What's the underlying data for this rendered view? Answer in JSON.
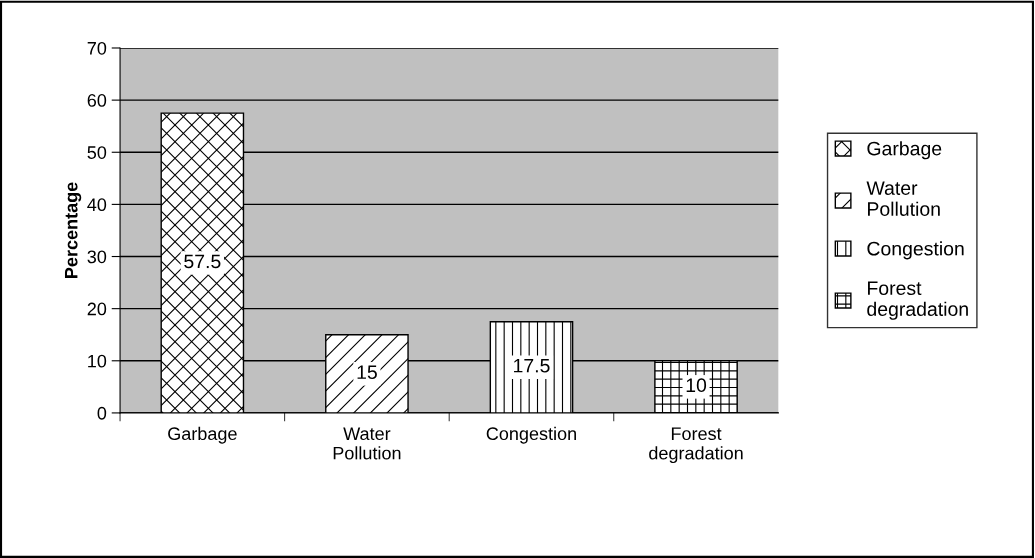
{
  "chart_data": {
    "type": "bar",
    "ylabel": "Percentage",
    "categories": [
      "Garbage",
      "Water Pollution",
      "Congestion",
      "Forest degradation"
    ],
    "series": [
      {
        "name": "Garbage",
        "color": "#000000",
        "values": [
          57.5,
          null,
          null,
          null
        ]
      },
      {
        "name": "Water Pollution",
        "color": "#000000",
        "values": [
          null,
          15,
          null,
          null
        ]
      },
      {
        "name": "Congestion",
        "color": "#000000",
        "values": [
          null,
          null,
          17.5,
          null
        ]
      },
      {
        "name": "Forest degradation",
        "color": "#000000",
        "values": [
          null,
          null,
          null,
          10
        ]
      }
    ],
    "ylim": [
      0,
      70
    ],
    "yticks": [
      0,
      10,
      20,
      30,
      40,
      50,
      60,
      70
    ],
    "grid": "y",
    "legend": "right",
    "data_labels": true
  }
}
